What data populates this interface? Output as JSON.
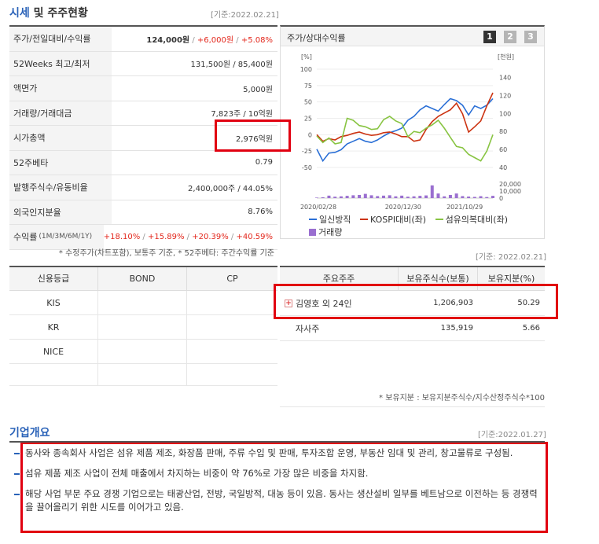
{
  "header": {
    "title_part1": "시세",
    "title_part2": " 및 주주현황",
    "date": "[기준:2022.02.21]"
  },
  "market_info": [
    {
      "label": "주가/전일대비/수익률",
      "price": "124,000원",
      "change": "+6,000원",
      "rate": "+5.08%"
    },
    {
      "label": "52Weeks 최고/최저",
      "value": "131,500원 / 85,400원"
    },
    {
      "label": "액면가",
      "value": "5,000원"
    },
    {
      "label": "거래량/거래대금",
      "value": "7,823주 / 10억원"
    },
    {
      "label": "시가총액",
      "value": "2,976억원"
    },
    {
      "label": "52주베타",
      "value": "0.79"
    },
    {
      "label": "발행주식수/유동비율",
      "value": "2,400,000주 / 44.05%"
    },
    {
      "label": "외국인지분율",
      "value": "8.76%"
    },
    {
      "label": "수익률",
      "label_sub": "(1M/3M/6M/1Y)",
      "values": [
        "+18.10%",
        "+15.89%",
        "+20.39%",
        "+40.59%"
      ]
    }
  ],
  "market_note": "* 수정주가(차트포함), 보통주 기준, * 52주베타: 주간수익률 기준",
  "chart_panel": {
    "title": "주가/상대수익률",
    "pages": [
      "1",
      "2",
      "3"
    ],
    "active_page": 0,
    "colors": {
      "company": "#2a6fd6",
      "kospi": "#cc3311",
      "sector": "#88c442",
      "volume": "#9a6fd0"
    }
  },
  "chart_data": {
    "type": "line",
    "left_axis_unit": "[%]",
    "right_axis_unit": "[천원]",
    "left_ticks": [
      "100",
      "75",
      "50",
      "25",
      "0",
      "-25",
      "-50"
    ],
    "right_ticks": [
      "140",
      "120",
      "100",
      "80",
      "60",
      "40"
    ],
    "volume_ticks": [
      "20,000",
      "10,000",
      "0"
    ],
    "ylim_left": [
      -50,
      100
    ],
    "ylim_volume": [
      0,
      20000
    ],
    "x_labels": [
      "2020/02/28",
      "2020/12/30",
      "2021/10/29"
    ],
    "series": [
      {
        "name": "일신방직",
        "color": "#2a6fd6",
        "values": [
          -22,
          -40,
          -28,
          -27,
          -23,
          -14,
          -10,
          -6,
          -10,
          -12,
          -8,
          -2,
          3,
          6,
          10,
          22,
          28,
          38,
          44,
          40,
          36,
          46,
          55,
          52,
          45,
          30,
          44,
          40,
          45,
          55
        ]
      },
      {
        "name": "KOSPI대비(좌)",
        "color": "#cc3311",
        "values": [
          0,
          -10,
          -6,
          -8,
          -3,
          -1,
          2,
          4,
          1,
          -1,
          0,
          3,
          4,
          1,
          -3,
          -3,
          -10,
          -8,
          8,
          20,
          28,
          33,
          38,
          48,
          32,
          4,
          12,
          21,
          44,
          64
        ]
      },
      {
        "name": "섬유의복대비(좌)",
        "color": "#88c442",
        "values": [
          -2,
          -12,
          -5,
          -14,
          -12,
          25,
          22,
          14,
          12,
          8,
          9,
          23,
          28,
          21,
          17,
          -3,
          5,
          3,
          10,
          15,
          22,
          10,
          -4,
          -18,
          -20,
          -30,
          -35,
          -40,
          -25,
          0
        ]
      },
      {
        "name": "거래량",
        "color": "#9a6fd0",
        "values": [
          700,
          1200,
          3500,
          2000,
          2500,
          3200,
          4000,
          4500,
          6000,
          4000,
          2800,
          3500,
          4000,
          2500,
          3500,
          2000,
          2500,
          3200,
          3800,
          18000,
          6500,
          2500,
          4500,
          6500,
          2800,
          2200,
          1700,
          2700,
          1500,
          3200
        ]
      }
    ]
  },
  "credit": {
    "headers": [
      "신용등급",
      "BOND",
      "CP"
    ],
    "rows": [
      "KIS",
      "KR",
      "NICE"
    ]
  },
  "shareholders": {
    "date": "[기준: 2022.02.21]",
    "headers": [
      "주요주주",
      "보유주식수(보통)",
      "보유지분(%)"
    ],
    "rows": [
      {
        "name": "김영호 외 24인",
        "shares": "1,206,903",
        "pct": "50.29"
      },
      {
        "name": "자사주",
        "shares": "135,919",
        "pct": "5.66"
      }
    ],
    "note": "* 보유지분 : 보유지분주식수/지수산정주식수*100"
  },
  "overview": {
    "title": "기업개요",
    "date": "[기준:2022.01.27]",
    "items": [
      "동사와 종속회사 사업은 섬유 제품 제조, 화장품 판매, 주류 수입 및 판매, 투자조합 운영, 부동산 임대 및 관리, 창고물류로 구성됨.",
      "섬유 제품 제조 사업이 전체 매출에서 차지하는 비중이 약 76%로 가장 많은 비중을 차지함.",
      "해당 사업 부문 주요 경쟁 기업으로는 태광산업, 전방, 국일방적, 대농 등이 있음. 동사는 생산설비 일부를 베트남으로 이전하는 등 경쟁력을 끌어올리기 위한 시도를 이어가고 있음."
    ]
  }
}
